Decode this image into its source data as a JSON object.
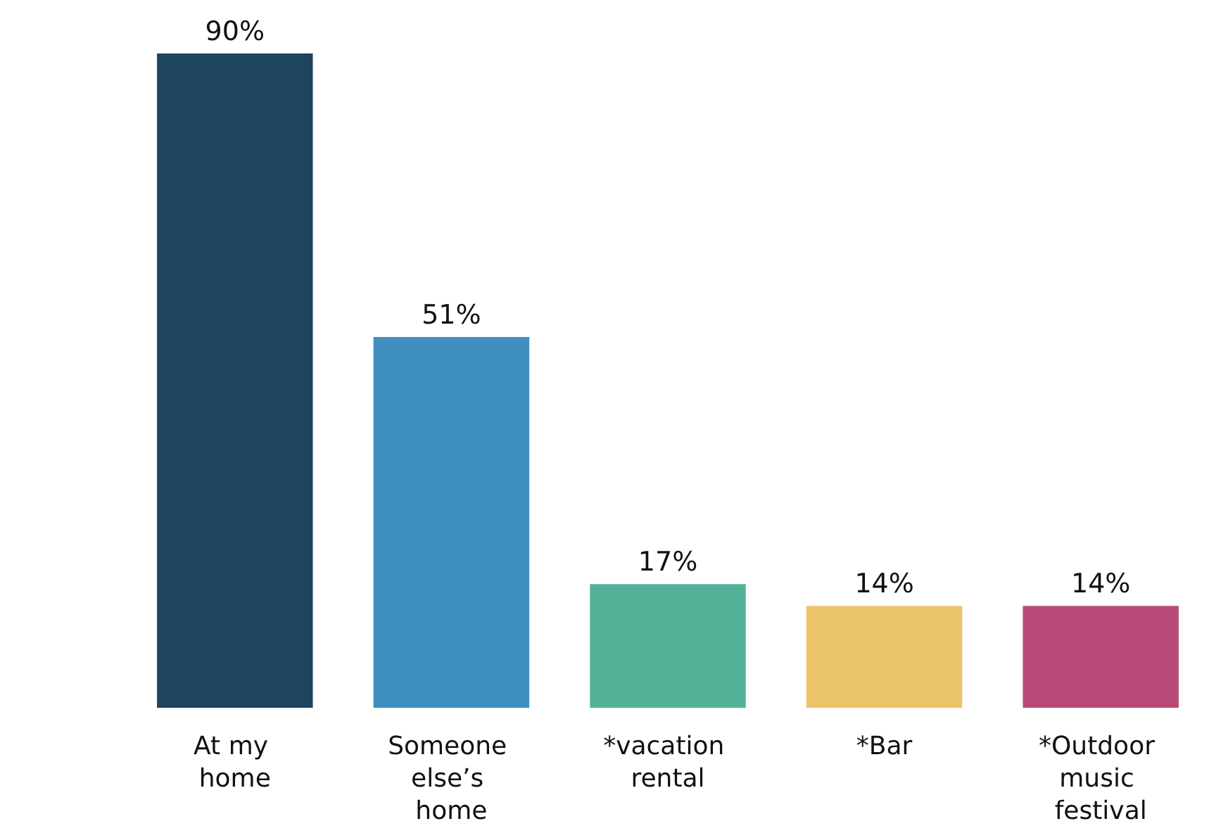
{
  "chart_data": {
    "type": "bar",
    "categories": [
      "At my home",
      "Someone else’s home",
      "*vacation rental",
      "*Bar",
      "*Outdoor music festival"
    ],
    "values": [
      90,
      51,
      17,
      14,
      14
    ],
    "data_labels": true,
    "value_labels": [
      "90%",
      "51%",
      "17%",
      "14%",
      "14%"
    ],
    "colors": [
      "#1f4460",
      "#3f8fbe",
      "#52b297",
      "#ebc46a",
      "#b84a78"
    ]
  }
}
